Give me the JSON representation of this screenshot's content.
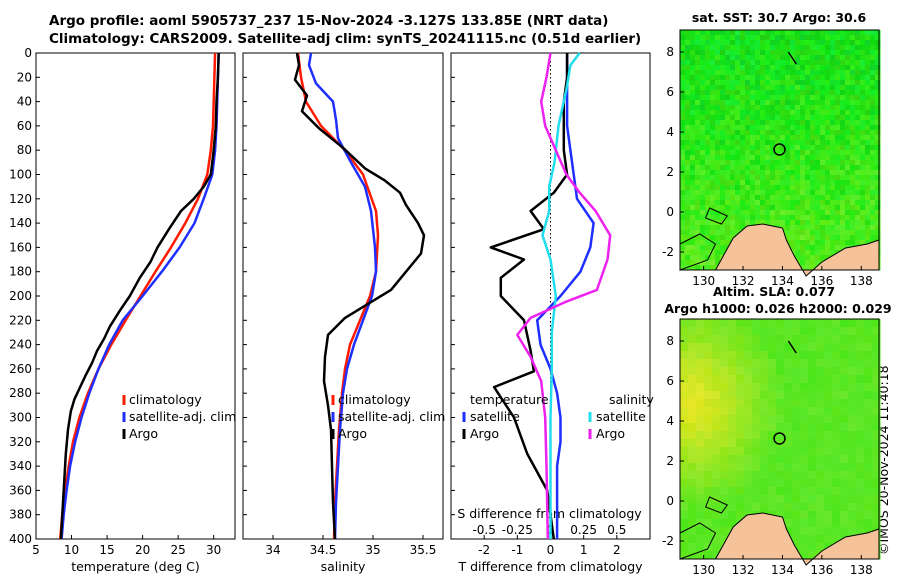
{
  "titles": {
    "line1": "Argo profile: aoml 5905737_237 15-Nov-2024 -3.127S 133.85E (NRT data)",
    "line2": "Climatology: CARS2009. Satellite-adj clim: synTS_20241115.nc (0.51d earlier)"
  },
  "credit": "©IMOS 20-Nov-2024 11:40:18",
  "colors": {
    "climatology": "#ff1a00",
    "satellite": "#1f2fff",
    "argo": "#000000",
    "sat_s": "#22ddee",
    "argo_s": "#ee22ee",
    "land": "#f5c29a"
  },
  "chart_data": [
    {
      "type": "line",
      "name": "temperature",
      "xlabel": "temperature (deg C)",
      "ylabel": "",
      "xlim": [
        5,
        33
      ],
      "ylim": [
        400,
        0
      ],
      "xticks": [
        "5",
        "10",
        "15",
        "20",
        "25",
        "30"
      ],
      "yticks": [
        "0",
        "20",
        "40",
        "60",
        "80",
        "100",
        "120",
        "140",
        "160",
        "180",
        "200",
        "220",
        "240",
        "260",
        "280",
        "300",
        "320",
        "340",
        "360",
        "380",
        "400"
      ],
      "legend": [
        "climatology",
        "satellite-adj. clim",
        "Argo"
      ],
      "series": [
        {
          "name": "climatology",
          "points": [
            [
              30.2,
              0
            ],
            [
              30.1,
              20
            ],
            [
              30,
              40
            ],
            [
              29.9,
              60
            ],
            [
              29.6,
              80
            ],
            [
              29.1,
              100
            ],
            [
              27.8,
              120
            ],
            [
              26,
              140
            ],
            [
              24,
              160
            ],
            [
              21.8,
              180
            ],
            [
              19.7,
              200
            ],
            [
              17.6,
              220
            ],
            [
              15.6,
              240
            ],
            [
              13.8,
              260
            ],
            [
              12.3,
              280
            ],
            [
              11.1,
              300
            ],
            [
              10.2,
              320
            ],
            [
              9.6,
              340
            ],
            [
              9.1,
              360
            ],
            [
              8.7,
              380
            ],
            [
              8.4,
              400
            ]
          ]
        },
        {
          "name": "satellite-adj. clim",
          "points": [
            [
              30.7,
              0
            ],
            [
              30.6,
              20
            ],
            [
              30.5,
              40
            ],
            [
              30.4,
              60
            ],
            [
              30.2,
              80
            ],
            [
              29.8,
              100
            ],
            [
              28.6,
              120
            ],
            [
              27.3,
              140
            ],
            [
              25.2,
              160
            ],
            [
              22.7,
              180
            ],
            [
              20,
              200
            ],
            [
              17.2,
              220
            ],
            [
              15.3,
              240
            ],
            [
              13.8,
              260
            ],
            [
              12.5,
              280
            ],
            [
              11.4,
              300
            ],
            [
              10.5,
              320
            ],
            [
              9.8,
              340
            ],
            [
              9.3,
              360
            ],
            [
              8.9,
              380
            ],
            [
              8.6,
              400
            ]
          ]
        },
        {
          "name": "Argo",
          "points": [
            [
              30.7,
              0
            ],
            [
              30.6,
              20
            ],
            [
              30.4,
              40
            ],
            [
              30.3,
              60
            ],
            [
              30,
              80
            ],
            [
              29.6,
              100
            ],
            [
              28.6,
              110
            ],
            [
              27.2,
              120
            ],
            [
              25.4,
              130
            ],
            [
              23.7,
              145
            ],
            [
              22.1,
              160
            ],
            [
              21.1,
              172
            ],
            [
              19.6,
              185
            ],
            [
              18.2,
              200
            ],
            [
              16.8,
              212
            ],
            [
              15.4,
              225
            ],
            [
              14.6,
              235
            ],
            [
              13.6,
              245
            ],
            [
              12.9,
              255
            ],
            [
              12,
              265
            ],
            [
              11.2,
              275
            ],
            [
              10.4,
              285
            ],
            [
              9.9,
              295
            ],
            [
              9.5,
              310
            ],
            [
              9.2,
              330
            ],
            [
              9,
              350
            ],
            [
              8.8,
              370
            ],
            [
              8.6,
              390
            ],
            [
              8.5,
              400
            ]
          ]
        }
      ]
    },
    {
      "type": "line",
      "name": "salinity",
      "xlabel": "salinity",
      "xlim": [
        33.7,
        35.7
      ],
      "ylim": [
        400,
        0
      ],
      "xticks": [
        "34",
        "34.5",
        "35",
        "35.5"
      ],
      "legend": [
        "climatology",
        "satellite-adj. clim",
        "Argo"
      ],
      "series": [
        {
          "name": "climatology",
          "points": [
            [
              34.25,
              0
            ],
            [
              34.28,
              20
            ],
            [
              34.33,
              40
            ],
            [
              34.48,
              60
            ],
            [
              34.72,
              80
            ],
            [
              34.9,
              100
            ],
            [
              35.03,
              130
            ],
            [
              35.05,
              150
            ],
            [
              35.03,
              180
            ],
            [
              34.97,
              200
            ],
            [
              34.87,
              220
            ],
            [
              34.77,
              240
            ],
            [
              34.72,
              260
            ],
            [
              34.69,
              280
            ],
            [
              34.66,
              310
            ],
            [
              34.64,
              340
            ],
            [
              34.62,
              370
            ],
            [
              34.61,
              400
            ]
          ]
        },
        {
          "name": "satellite-adj. clim",
          "points": [
            [
              34.38,
              0
            ],
            [
              34.36,
              10
            ],
            [
              34.43,
              25
            ],
            [
              34.6,
              40
            ],
            [
              34.63,
              55
            ],
            [
              34.65,
              70
            ],
            [
              34.78,
              90
            ],
            [
              34.92,
              110
            ],
            [
              34.98,
              130
            ],
            [
              35.02,
              160
            ],
            [
              35.03,
              180
            ],
            [
              34.99,
              200
            ],
            [
              34.9,
              220
            ],
            [
              34.81,
              240
            ],
            [
              34.74,
              260
            ],
            [
              34.7,
              280
            ],
            [
              34.67,
              310
            ],
            [
              34.65,
              340
            ],
            [
              34.63,
              370
            ],
            [
              34.62,
              400
            ]
          ]
        },
        {
          "name": "Argo",
          "points": [
            [
              34.24,
              0
            ],
            [
              34.26,
              10
            ],
            [
              34.22,
              22
            ],
            [
              34.34,
              35
            ],
            [
              34.29,
              48
            ],
            [
              34.46,
              62
            ],
            [
              34.7,
              78
            ],
            [
              34.92,
              95
            ],
            [
              35.12,
              105
            ],
            [
              35.27,
              115
            ],
            [
              35.33,
              125
            ],
            [
              35.45,
              140
            ],
            [
              35.51,
              150
            ],
            [
              35.48,
              165
            ],
            [
              35.33,
              180
            ],
            [
              35.18,
              195
            ],
            [
              34.98,
              205
            ],
            [
              34.72,
              218
            ],
            [
              34.55,
              232
            ],
            [
              34.52,
              250
            ],
            [
              34.51,
              270
            ],
            [
              34.55,
              290
            ],
            [
              34.58,
              310
            ],
            [
              34.59,
              340
            ],
            [
              34.6,
              370
            ],
            [
              34.62,
              400
            ]
          ]
        }
      ]
    },
    {
      "type": "line",
      "name": "difference",
      "xlabel": "T difference from climatology",
      "xlabel_top": "S difference from climatology",
      "xlim": [
        -3,
        3
      ],
      "ylim": [
        400,
        0
      ],
      "xticks": [
        "-2",
        "-1",
        "0",
        "1",
        "2"
      ],
      "xticks_s": [
        "-0.5",
        "-0.25",
        "0",
        "0.25",
        "0.5"
      ],
      "legend_t_title": "temperature",
      "legend_s_title": "salinity",
      "legend": [
        "satellite",
        "Argo",
        "satellite",
        "Argo"
      ],
      "series": [
        {
          "name": "temperature satellite",
          "points": [
            [
              0.5,
              0
            ],
            [
              0.5,
              20
            ],
            [
              0.5,
              40
            ],
            [
              0.5,
              60
            ],
            [
              0.6,
              80
            ],
            [
              0.7,
              100
            ],
            [
              0.8,
              120
            ],
            [
              1.3,
              140
            ],
            [
              1.2,
              160
            ],
            [
              0.9,
              180
            ],
            [
              0.3,
              200
            ],
            [
              -0.4,
              220
            ],
            [
              -0.3,
              240
            ],
            [
              0,
              260
            ],
            [
              0.2,
              280
            ],
            [
              0.3,
              300
            ],
            [
              0.3,
              320
            ],
            [
              0.2,
              340
            ],
            [
              0.2,
              360
            ],
            [
              0.2,
              380
            ],
            [
              0.2,
              400
            ]
          ]
        },
        {
          "name": "temperature Argo",
          "points": [
            [
              0.5,
              0
            ],
            [
              0.5,
              20
            ],
            [
              0.4,
              40
            ],
            [
              0.4,
              60
            ],
            [
              0.4,
              80
            ],
            [
              0.5,
              100
            ],
            [
              0.1,
              115
            ],
            [
              -0.6,
              130
            ],
            [
              -0.2,
              145
            ],
            [
              -1.8,
              160
            ],
            [
              -0.8,
              170
            ],
            [
              -1.5,
              185
            ],
            [
              -1.5,
              200
            ],
            [
              -0.8,
              220
            ],
            [
              -0.6,
              245
            ],
            [
              -0.5,
              262
            ],
            [
              -1.7,
              275
            ],
            [
              -1.1,
              300
            ],
            [
              -0.7,
              330
            ],
            [
              -0.1,
              360
            ],
            [
              0.1,
              400
            ]
          ]
        },
        {
          "name": "salinity satellite",
          "points": [
            [
              0.22,
              0
            ],
            [
              0.15,
              10
            ],
            [
              0.12,
              30
            ],
            [
              0.06,
              60
            ],
            [
              0.03,
              90
            ],
            [
              -0.01,
              110
            ],
            [
              -0.01,
              130
            ],
            [
              -0.06,
              150
            ],
            [
              0,
              170
            ],
            [
              0.04,
              200
            ],
            [
              0.01,
              230
            ],
            [
              0.01,
              260
            ],
            [
              0,
              300
            ],
            [
              0,
              340
            ],
            [
              0,
              400
            ]
          ]
        },
        {
          "name": "salinity Argo",
          "points": [
            [
              0,
              0
            ],
            [
              -0.03,
              20
            ],
            [
              -0.07,
              40
            ],
            [
              -0.04,
              60
            ],
            [
              0.04,
              80
            ],
            [
              0.12,
              100
            ],
            [
              0.22,
              115
            ],
            [
              0.34,
              130
            ],
            [
              0.45,
              150
            ],
            [
              0.43,
              170
            ],
            [
              0.35,
              195
            ],
            [
              0.11,
              205
            ],
            [
              -0.15,
              218
            ],
            [
              -0.25,
              232
            ],
            [
              -0.15,
              250
            ],
            [
              -0.07,
              270
            ],
            [
              -0.04,
              300
            ],
            [
              -0.03,
              340
            ],
            [
              -0.02,
              400
            ]
          ]
        }
      ]
    },
    {
      "type": "heatmap",
      "name": "sst-map",
      "title": "sat. SST: 30.7 Argo: 30.6",
      "xticks": [
        "130",
        "132",
        "134",
        "136",
        "138"
      ],
      "yticks": [
        "8",
        "6",
        "4",
        "2",
        "0",
        "-2"
      ],
      "xlim": [
        128.8,
        138.9
      ],
      "ylim": [
        -2.9,
        9.1
      ],
      "marker": [
        133.85,
        3.127
      ]
    },
    {
      "type": "heatmap",
      "name": "sla-map",
      "title": "Altim. SLA: 0.077",
      "subtitle": "Argo h1000: 0.026 h2000: 0.029",
      "xticks": [
        "130",
        "132",
        "134",
        "136",
        "138"
      ],
      "yticks": [
        "8",
        "6",
        "4",
        "2",
        "0",
        "-2"
      ],
      "xlim": [
        128.8,
        138.9
      ],
      "ylim": [
        -2.9,
        9.1
      ],
      "marker": [
        133.85,
        3.127
      ]
    }
  ]
}
